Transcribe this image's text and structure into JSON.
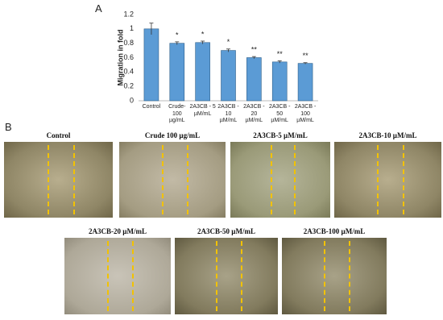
{
  "panel_labels": [
    "A",
    "B"
  ],
  "chart_data": {
    "type": "bar",
    "y_label": "Migration in fold",
    "categories": [
      "Control",
      "Crude-\n100\nµg/mL",
      "2A3CB - 5\nµM/mL",
      "2A3CB -\n10\nµM/mL",
      "2A3CB -\n20\nµM/mL",
      "2A3CB -\n50\nµM/mL",
      "2A3CB -\n100\nµM/mL"
    ],
    "values": [
      1.0,
      0.8,
      0.81,
      0.7,
      0.6,
      0.54,
      0.52
    ],
    "errors": [
      0.08,
      0.02,
      0.02,
      0.02,
      0.015,
      0.015,
      0.01
    ],
    "annotations": [
      null,
      "*",
      "*",
      "*",
      "**",
      "**",
      "**"
    ],
    "color": "#5b9bd5",
    "ylim": [
      0,
      1.2
    ],
    "yticks": [
      0,
      0.2,
      0.4,
      0.6,
      0.8,
      1,
      1.2
    ],
    "grid": false
  },
  "image_captions": [
    "Control",
    "Crude 100 µg/mL",
    "2A3CB-5 µM/mL",
    "2A3CB-10 µM/mL",
    "2A3CB-20 µM/mL",
    "2A3CB-50 µM/mL",
    "2A3CB-100 µM/mL"
  ]
}
